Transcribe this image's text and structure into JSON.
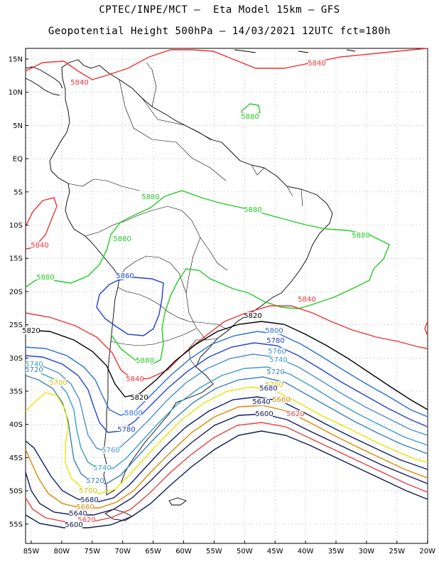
{
  "title_line1": "CPTEC/INPE/MCT –  Eta Model 15km – GFS",
  "title_line2": "Geopotential Height 500hPa – 14/03/2021 12UTC fct=180h",
  "lat_ticks": [
    "15N",
    "10N",
    "5N",
    "EQ",
    "5S",
    "10S",
    "15S",
    "20S",
    "25S",
    "30S",
    "35S",
    "40S",
    "45S",
    "50S",
    "55S"
  ],
  "lon_ticks": [
    "85W",
    "80W",
    "75W",
    "70W",
    "65W",
    "60W",
    "55W",
    "50W",
    "45W",
    "40W",
    "35W",
    "30W",
    "25W",
    "20W"
  ],
  "contour_colors": {
    "5880": "#22cc22",
    "5860": "#1f3fcf",
    "5840": "#ee3333",
    "5820": "#000000",
    "5800": "#2a6fd4",
    "5780": "#2244cc",
    "5760": "#4d8fd0",
    "5740": "#3c9cc8",
    "5720": "#3c7fb8",
    "5700": "#e6e600",
    "5680": "#0a1e6b",
    "5660": "#d98a00",
    "5640": "#101a60",
    "5620": "#e84040",
    "5600": "#0a1a50"
  },
  "contour_labels": [
    {
      "text": "5840",
      "color": "#ee3333"
    },
    {
      "text": "5840",
      "color": "#ee3333"
    },
    {
      "text": "5840",
      "color": "#ee3333"
    },
    {
      "text": "5880",
      "color": "#22cc22"
    },
    {
      "text": "5880",
      "color": "#22cc22"
    },
    {
      "text": "5880",
      "color": "#22cc22"
    },
    {
      "text": "5880",
      "color": "#22cc22"
    },
    {
      "text": "5880",
      "color": "#22cc22"
    },
    {
      "text": "5860",
      "color": "#1f3fcf"
    },
    {
      "text": "5880",
      "color": "#22cc22"
    },
    {
      "text": "5840",
      "color": "#ee3333"
    },
    {
      "text": "5820",
      "color": "#000000"
    },
    {
      "text": "5820",
      "color": "#000000"
    },
    {
      "text": "5800",
      "color": "#2a6fd4"
    },
    {
      "text": "5780",
      "color": "#2244cc"
    },
    {
      "text": "5760",
      "color": "#4d8fd0"
    },
    {
      "text": "5740",
      "color": "#3c9cc8"
    },
    {
      "text": "5720",
      "color": "#3c7fb8"
    },
    {
      "text": "5880",
      "color": "#22cc22"
    },
    {
      "text": "5840",
      "color": "#ee3333"
    },
    {
      "text": "5740",
      "color": "#3c9cc8"
    },
    {
      "text": "5720",
      "color": "#3c7fb8"
    },
    {
      "text": "5700",
      "color": "#d4c400"
    },
    {
      "text": "5820",
      "color": "#000000"
    },
    {
      "text": "5700",
      "color": "#d4c400"
    },
    {
      "text": "5680",
      "color": "#0a1e6b"
    },
    {
      "text": "5660",
      "color": "#d98a00"
    },
    {
      "text": "5640",
      "color": "#101a60"
    },
    {
      "text": "5620",
      "color": "#e84040"
    },
    {
      "text": "5600",
      "color": "#0a1a50"
    },
    {
      "text": "5800",
      "color": "#2a6fd4"
    },
    {
      "text": "5780",
      "color": "#2244cc"
    },
    {
      "text": "5760",
      "color": "#4d8fd0"
    },
    {
      "text": "5740",
      "color": "#3c9cc8"
    },
    {
      "text": "5720",
      "color": "#3c7fb8"
    },
    {
      "text": "5700",
      "color": "#d4c400"
    },
    {
      "text": "5680",
      "color": "#0a1e6b"
    },
    {
      "text": "5660",
      "color": "#d98a00"
    },
    {
      "text": "5640",
      "color": "#101a60"
    },
    {
      "text": "5620",
      "color": "#e84040"
    },
    {
      "text": "5600",
      "color": "#0a1a50"
    }
  ]
}
